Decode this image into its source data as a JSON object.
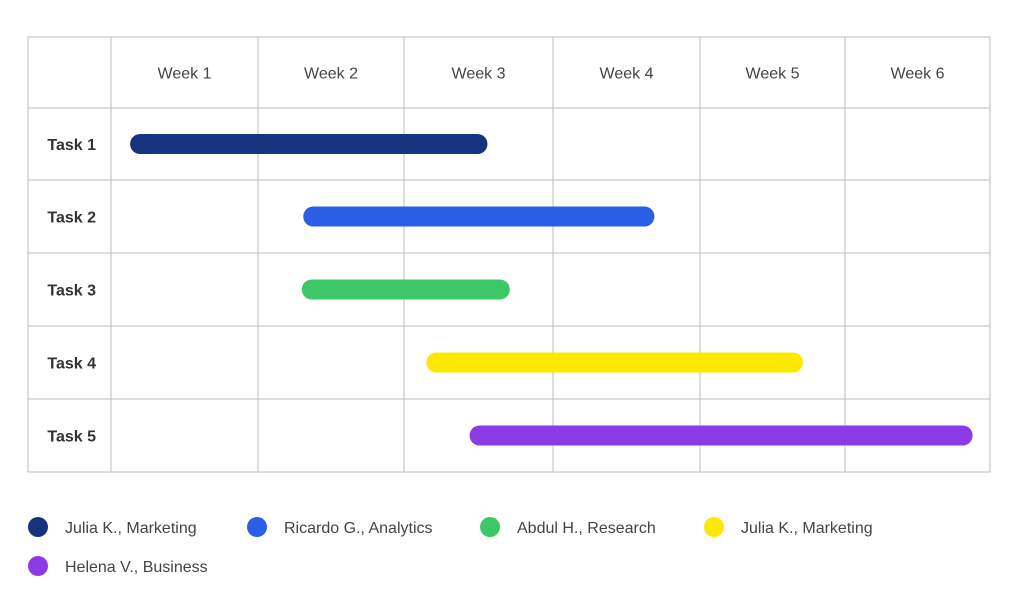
{
  "chart_data": {
    "type": "gantt",
    "columns": [
      "Week 1",
      "Week 2",
      "Week 3",
      "Week 4",
      "Week 5",
      "Week 6"
    ],
    "tasks": [
      {
        "name": "Task 1",
        "start": 0.13,
        "end": 2.56,
        "color": "#16337f",
        "owner": "Julia K., Marketing"
      },
      {
        "name": "Task 2",
        "start": 1.31,
        "end": 3.69,
        "color": "#2a5ee6",
        "owner": "Ricardo G., Analytics"
      },
      {
        "name": "Task 3",
        "start": 1.3,
        "end": 2.71,
        "color": "#3cc867",
        "owner": "Abdul H., Research"
      },
      {
        "name": "Task 4",
        "start": 2.15,
        "end": 4.71,
        "color": "#fde803",
        "owner": "Julia K., Marketing"
      },
      {
        "name": "Task 5",
        "start": 2.44,
        "end": 5.88,
        "color": "#8a3be6",
        "owner": "Helena V., Business"
      }
    ],
    "legend": [
      {
        "label": "Julia K., Marketing",
        "color": "#16337f"
      },
      {
        "label": "Ricardo G., Analytics",
        "color": "#2a5ee6"
      },
      {
        "label": "Abdul H., Research",
        "color": "#3cc867"
      },
      {
        "label": "Julia K., Marketing",
        "color": "#fde803"
      },
      {
        "label": "Helena V., Business",
        "color": "#8a3be6"
      }
    ],
    "legend_position": "bottom",
    "grid": true
  }
}
